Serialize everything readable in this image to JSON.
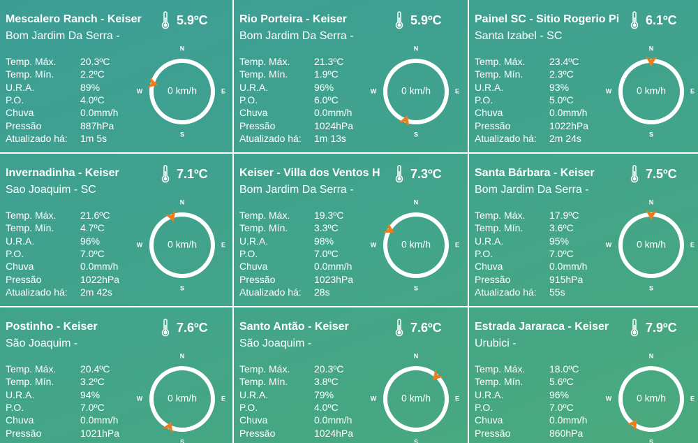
{
  "compass": {
    "n": "N",
    "e": "E",
    "s": "S",
    "w": "W"
  },
  "cards": [
    {
      "title": "Mescalero Ranch - Keiser",
      "temperature": "5.9ºC",
      "location": "Bom Jardim Da Serra -",
      "wind_speed": "0 km/h",
      "wind_direction": 285,
      "rows": [
        [
          "Temp. Máx.",
          "20.3ºC"
        ],
        [
          "Temp. Mín.",
          "2.2ºC"
        ],
        [
          "U.R.A.",
          "89%"
        ],
        [
          "P.O.",
          "4.0ºC"
        ],
        [
          "Chuva",
          "0.0mm/h"
        ],
        [
          "Pressão",
          "887hPa"
        ],
        [
          "Atualizado há:",
          "1m 5s"
        ]
      ]
    },
    {
      "title": "Rio Porteira - Keiser",
      "temperature": "5.9ºC",
      "location": "Bom Jardim Da Serra -",
      "wind_speed": "0 km/h",
      "wind_direction": 200,
      "rows": [
        [
          "Temp. Máx.",
          "21.3ºC"
        ],
        [
          "Temp. Mín.",
          "1.9ºC"
        ],
        [
          "U.R.A.",
          "96%"
        ],
        [
          "P.O.",
          "6.0ºC"
        ],
        [
          "Chuva",
          "0.0mm/h"
        ],
        [
          "Pressão",
          "1024hPa"
        ],
        [
          "Atualizado há:",
          "1m 13s"
        ]
      ]
    },
    {
      "title": "Painel SC - Sitio Rogerio Pi",
      "temperature": "6.1ºC",
      "location": "Santa Izabel - SC",
      "wind_speed": "0 km/h",
      "wind_direction": 0,
      "rows": [
        [
          "Temp. Máx.",
          "23.4ºC"
        ],
        [
          "Temp. Mín.",
          "2.3ºC"
        ],
        [
          "U.R.A.",
          "93%"
        ],
        [
          "P.O.",
          "5.0ºC"
        ],
        [
          "Chuva",
          "0.0mm/h"
        ],
        [
          "Pressão",
          "1022hPa"
        ],
        [
          "Atualizado há:",
          "2m 24s"
        ]
      ]
    },
    {
      "title": "Invernadinha - Keiser",
      "temperature": "7.1ºC",
      "location": "Sao Joaquim - SC",
      "wind_speed": "0 km/h",
      "wind_direction": 340,
      "rows": [
        [
          "Temp. Máx.",
          "21.6ºC"
        ],
        [
          "Temp. Mín.",
          "4.7ºC"
        ],
        [
          "U.R.A.",
          "96%"
        ],
        [
          "P.O.",
          "7.0ºC"
        ],
        [
          "Chuva",
          "0.0mm/h"
        ],
        [
          "Pressão",
          "1022hPa"
        ],
        [
          "Atualizado há:",
          "2m 42s"
        ]
      ]
    },
    {
      "title": "Keiser - Villa dos Ventos H",
      "temperature": "7.3ºC",
      "location": "Bom Jardim Da Serra -",
      "wind_speed": "0 km/h",
      "wind_direction": 300,
      "rows": [
        [
          "Temp. Máx.",
          "19.3ºC"
        ],
        [
          "Temp. Mín.",
          "3.3ºC"
        ],
        [
          "U.R.A.",
          "98%"
        ],
        [
          "P.O.",
          "7.0ºC"
        ],
        [
          "Chuva",
          "0.0mm/h"
        ],
        [
          "Pressão",
          "1023hPa"
        ],
        [
          "Atualizado há:",
          "28s"
        ]
      ]
    },
    {
      "title": "Santa Bárbara - Keiser",
      "temperature": "7.5ºC",
      "location": "Bom Jardim Da Serra -",
      "wind_speed": "0 km/h",
      "wind_direction": 0,
      "rows": [
        [
          "Temp. Máx.",
          "17.9ºC"
        ],
        [
          "Temp. Mín.",
          "3.6ºC"
        ],
        [
          "U.R.A.",
          "95%"
        ],
        [
          "P.O.",
          "7.0ºC"
        ],
        [
          "Chuva",
          "0.0mm/h"
        ],
        [
          "Pressão",
          "915hPa"
        ],
        [
          "Atualizado há:",
          "55s"
        ]
      ]
    },
    {
      "title": "Postinho - Keiser",
      "temperature": "7.6ºC",
      "location": "São Joaquim -",
      "wind_speed": "0 km/h",
      "wind_direction": 205,
      "rows": [
        [
          "Temp. Máx.",
          "20.4ºC"
        ],
        [
          "Temp. Mín.",
          "3.2ºC"
        ],
        [
          "U.R.A.",
          "94%"
        ],
        [
          "P.O.",
          "7.0ºC"
        ],
        [
          "Chuva",
          "0.0mm/h"
        ],
        [
          "Pressão",
          "1021hPa"
        ]
      ]
    },
    {
      "title": "Santo Antão - Keiser",
      "temperature": "7.6ºC",
      "location": "São Joaquim -",
      "wind_speed": "0 km/h",
      "wind_direction": 42,
      "rows": [
        [
          "Temp. Máx.",
          "20.3ºC"
        ],
        [
          "Temp. Mín.",
          "3.8ºC"
        ],
        [
          "U.R.A.",
          "79%"
        ],
        [
          "P.O.",
          "4.0ºC"
        ],
        [
          "Chuva",
          "0.0mm/h"
        ],
        [
          "Pressão",
          "1024hPa"
        ]
      ]
    },
    {
      "title": "Estrada Jararaca - Keiser",
      "temperature": "7.9ºC",
      "location": "Urubici -",
      "wind_speed": "0 km/h",
      "wind_direction": 215,
      "rows": [
        [
          "Temp. Máx.",
          "18.0ºC"
        ],
        [
          "Temp. Mín.",
          "5.6ºC"
        ],
        [
          "U.R.A.",
          "96%"
        ],
        [
          "P.O.",
          "7.0ºC"
        ],
        [
          "Chuva",
          "0.0mm/h"
        ],
        [
          "Pressão",
          "860hPa"
        ]
      ]
    }
  ]
}
